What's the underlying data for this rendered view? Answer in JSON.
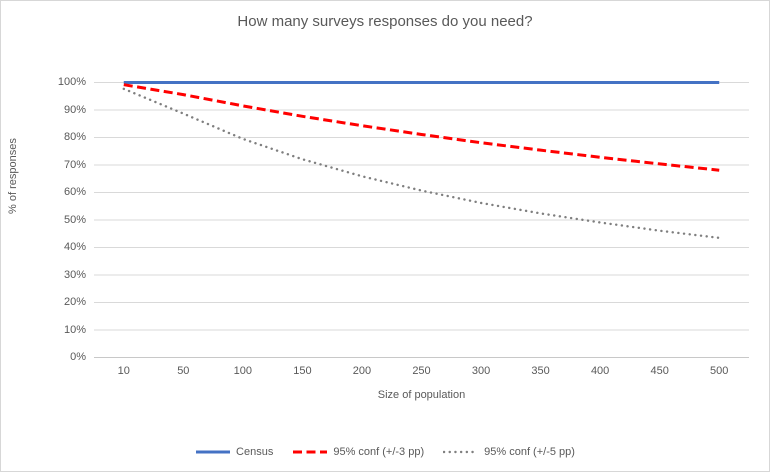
{
  "chart_data": {
    "type": "line",
    "title": "How many surveys responses do you need?",
    "xlabel": "Size of population",
    "ylabel": "% of responses",
    "categories": [
      10,
      50,
      100,
      150,
      200,
      250,
      300,
      350,
      400,
      450,
      500
    ],
    "yticks": [
      "0%",
      "10%",
      "20%",
      "30%",
      "40%",
      "50%",
      "60%",
      "70%",
      "80%",
      "90%",
      "100%"
    ],
    "ylim": [
      0,
      100
    ],
    "grid": true,
    "legend_position": "bottom",
    "series": [
      {
        "name": "Census",
        "style": "solid",
        "color": "#4472c4",
        "values": [
          100,
          100,
          100,
          100,
          100,
          100,
          100,
          100,
          100,
          100,
          100
        ]
      },
      {
        "name": "95% conf (+/-3 pp)",
        "style": "dashed",
        "color": "#ff0000",
        "values": [
          99.2,
          95.6,
          91.5,
          87.7,
          84.3,
          81.1,
          78.1,
          75.4,
          72.8,
          70.4,
          68.1
        ]
      },
      {
        "name": "95% conf (+/-5 pp)",
        "style": "dotted",
        "color": "#7f7f7f",
        "values": [
          97.7,
          88.7,
          79.5,
          72.1,
          65.9,
          60.7,
          56.2,
          52.4,
          49.1,
          46.1,
          43.5
        ]
      }
    ]
  },
  "colors": {
    "text": "#595959",
    "gridline": "#d9d9d9",
    "axis_line": "#c8c8c8",
    "figure_border": "#d7d7d7",
    "background": "#ffffff"
  }
}
